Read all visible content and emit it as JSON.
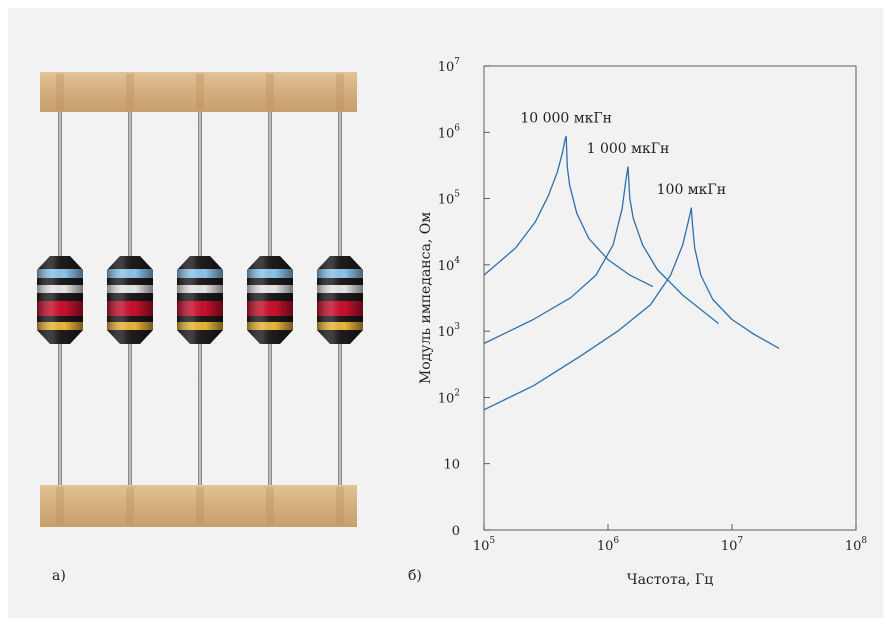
{
  "captions": {
    "a": "а)",
    "b": "б)"
  },
  "inductor_photo": {
    "count": 5,
    "body_colors": [
      "#8ec3ea",
      "#e6e6e6",
      "#c8102e",
      "#c8102e",
      "#e8b43a"
    ],
    "tape_color": "#d5b184"
  },
  "chart_data": {
    "type": "line",
    "title": "",
    "xlabel": "Частота, Гц",
    "ylabel": "Модуль импеданса, Ом",
    "x_scale": "log",
    "y_scale": "log",
    "xlim": [
      100000,
      100000000
    ],
    "ylim": [
      1,
      10000000
    ],
    "xticks": [
      {
        "value": 100000,
        "base": "10",
        "exp": "5"
      },
      {
        "value": 1000000,
        "base": "10",
        "exp": "6"
      },
      {
        "value": 10000000,
        "base": "10",
        "exp": "7"
      },
      {
        "value": 100000000,
        "base": "10",
        "exp": "8"
      }
    ],
    "yticks": [
      {
        "value": 1,
        "base": "0",
        "exp": ""
      },
      {
        "value": 10,
        "base": "10",
        "exp": ""
      },
      {
        "value": 100,
        "base": "10",
        "exp": "2"
      },
      {
        "value": 1000,
        "base": "10",
        "exp": "3"
      },
      {
        "value": 10000,
        "base": "10",
        "exp": "4"
      },
      {
        "value": 100000,
        "base": "10",
        "exp": "5"
      },
      {
        "value": 1000000,
        "base": "10",
        "exp": "6"
      },
      {
        "value": 10000000,
        "base": "10",
        "exp": "7"
      }
    ],
    "line_color": "#2e6fae",
    "grid": false,
    "series": [
      {
        "name": "10 000 мкГн",
        "x": [
          100000,
          180000,
          260000,
          330000,
          390000,
          430000,
          452000,
          460000,
          470000,
          490000,
          560000,
          700000,
          1000000,
          1500000,
          2300000
        ],
        "y": [
          7000,
          18000,
          45000,
          110000,
          250000,
          500000,
          800000,
          870000,
          300000,
          160000,
          60000,
          25000,
          12000,
          7000,
          4700
        ]
      },
      {
        "name": "1 000 мкГн",
        "x": [
          100000,
          250000,
          500000,
          800000,
          1100000,
          1300000,
          1400000,
          1450000,
          1500000,
          1600000,
          1900000,
          2500000,
          4000000,
          7800000
        ],
        "y": [
          650,
          1500,
          3200,
          7000,
          20000,
          70000,
          200000,
          300000,
          100000,
          50000,
          20000,
          8500,
          3500,
          1300
        ]
      },
      {
        "name": "100 мкГн",
        "x": [
          100000,
          250000,
          600000,
          1200000,
          2200000,
          3200000,
          4000000,
          4500000,
          4700000,
          4800000,
          5000000,
          5600000,
          7000000,
          10000000,
          15000000,
          24000000
        ],
        "y": [
          65,
          150,
          420,
          1000,
          2500,
          7000,
          20000,
          50000,
          72000,
          40000,
          18000,
          7000,
          3000,
          1500,
          900,
          550
        ]
      }
    ],
    "annotations": [
      {
        "text": "10 000 мкГн",
        "series": 0
      },
      {
        "text": "1 000 мкГн",
        "series": 1
      },
      {
        "text": "100 мкГн",
        "series": 2
      }
    ]
  }
}
